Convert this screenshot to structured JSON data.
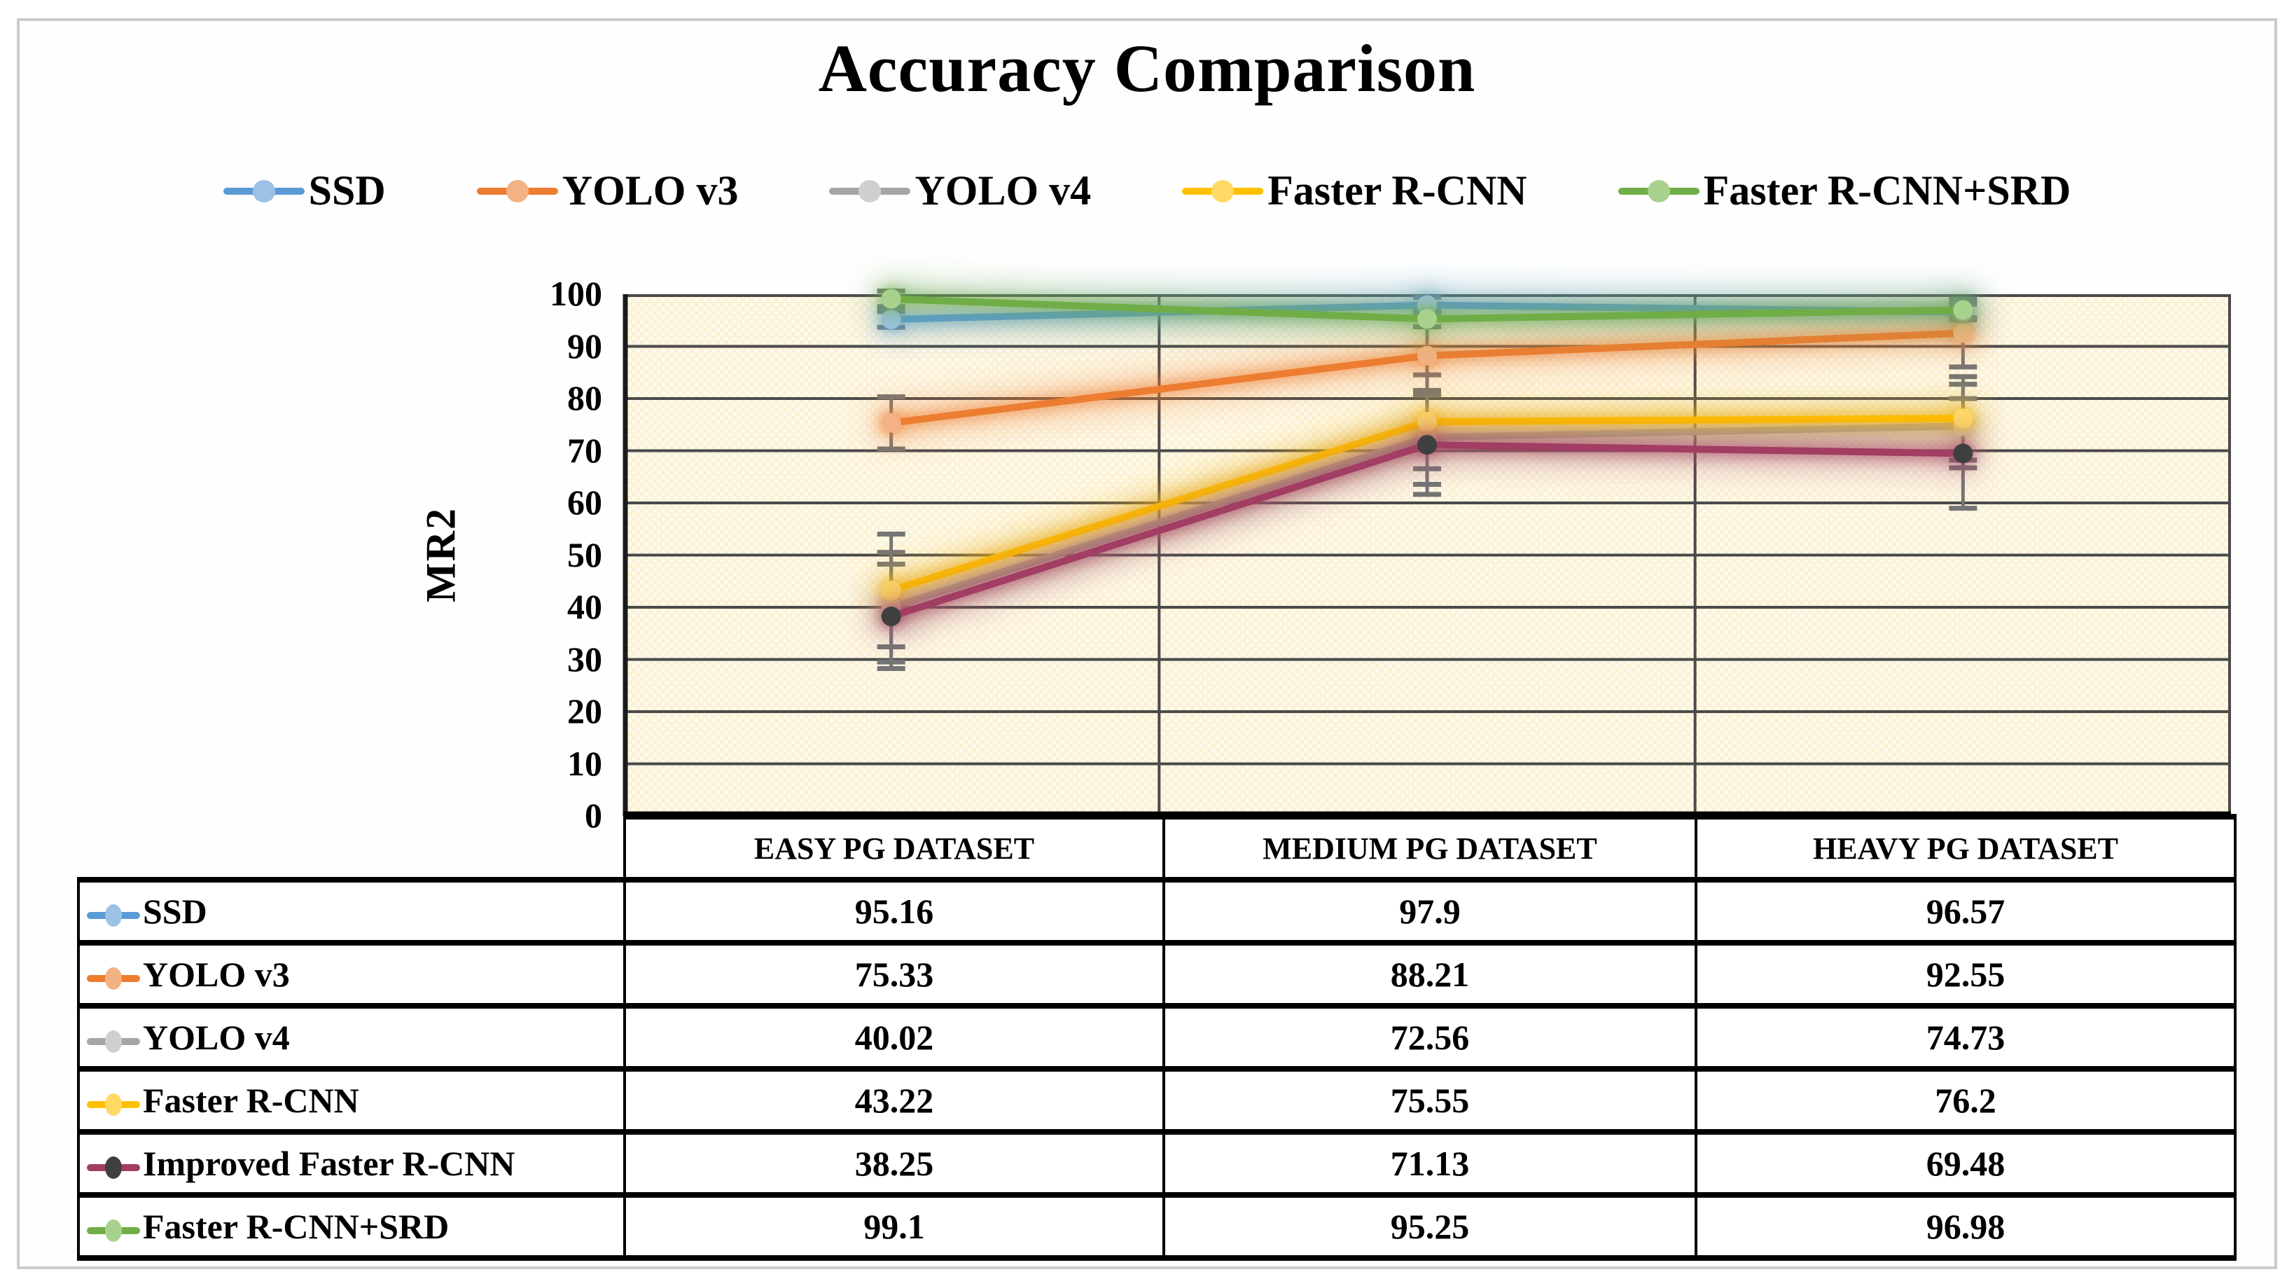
{
  "chart_data": {
    "type": "line",
    "title": "Accuracy Comparison",
    "ylabel": "MR2",
    "ylim": [
      0,
      100
    ],
    "ytick_step": 10,
    "grid": true,
    "legend_position": "top",
    "categories": [
      "EASY PG DATASET",
      "MEDIUM PG DATASET",
      "HEAVY PG DATASET"
    ],
    "series": [
      {
        "name": "SSD",
        "values": [
          95.16,
          97.9,
          96.57
        ],
        "error_bars": [
          1.5,
          1.5,
          1.5
        ],
        "line_color": "#5B9BD5",
        "marker_color": "#9CC2E5",
        "in_legend": true
      },
      {
        "name": "YOLO v3",
        "values": [
          75.33,
          88.21,
          92.55
        ],
        "error_bars": [
          5,
          7,
          6.5
        ],
        "line_color": "#ED7D31",
        "marker_color": "#F4B183",
        "in_legend": true
      },
      {
        "name": "YOLO v4",
        "values": [
          40.02,
          72.56,
          74.73
        ],
        "error_bars": [
          10.5,
          9,
          8
        ],
        "line_color": "#A5A5A5",
        "marker_color": "#CFCFCF",
        "in_legend": true
      },
      {
        "name": "Faster R-CNN",
        "values": [
          43.22,
          75.55,
          76.2
        ],
        "error_bars": [
          10.8,
          9,
          8
        ],
        "line_color": "#FFC000",
        "marker_color": "#FFD966",
        "in_legend": true
      },
      {
        "name": "Improved Faster R-CNN",
        "values": [
          38.25,
          71.13,
          69.48
        ],
        "error_bars": [
          10,
          9.5,
          10.5
        ],
        "line_color": "#A23D63",
        "marker_color": "#3F3F3F",
        "in_legend": false
      },
      {
        "name": "Faster R-CNN+SRD",
        "values": [
          99.1,
          95.25,
          96.98
        ],
        "error_bars": [
          1.5,
          1.5,
          1.5
        ],
        "line_color": "#70AD47",
        "marker_color": "#A9D18E",
        "in_legend": true
      }
    ]
  },
  "table": {
    "header": [
      "EASY PG DATASET",
      "MEDIUM PG DATASET",
      "HEAVY PG DATASET"
    ],
    "rows": [
      {
        "label": "SSD",
        "values": [
          "95.16",
          "97.9",
          "96.57"
        ]
      },
      {
        "label": "YOLO v3",
        "values": [
          "75.33",
          "88.21",
          "92.55"
        ]
      },
      {
        "label": "YOLO v4",
        "values": [
          "40.02",
          "72.56",
          "74.73"
        ]
      },
      {
        "label": "Faster R-CNN",
        "values": [
          "43.22",
          "75.55",
          "76.2"
        ]
      },
      {
        "label": "Improved Faster R-CNN",
        "values": [
          "38.25",
          "71.13",
          "69.48"
        ]
      },
      {
        "label": "Faster R-CNN+SRD",
        "values": [
          "99.1",
          "95.25",
          "96.98"
        ]
      }
    ]
  },
  "style": {
    "plot_bg": "#FCF2D7",
    "gridline": "#4A4A4A",
    "axis_line": "#1A1A1A",
    "error_bar": "#757575",
    "frame_border": "#CBCBCB",
    "table_border": "#000000",
    "text_color": "#000000"
  }
}
